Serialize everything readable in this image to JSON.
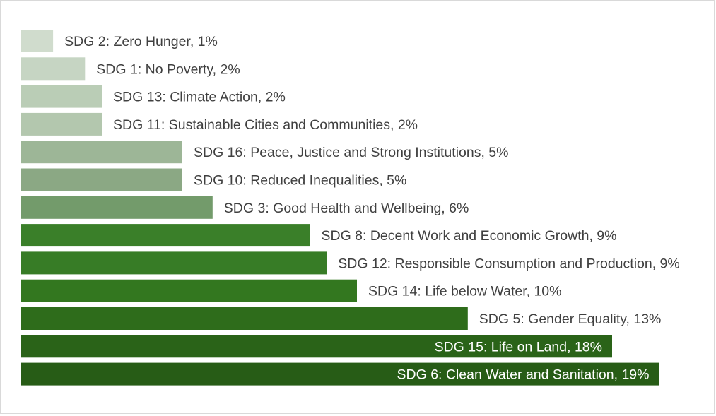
{
  "chart_data": {
    "type": "bar",
    "orientation": "horizontal",
    "title": "",
    "xlabel": "",
    "ylabel": "",
    "grid": false,
    "legend": "none",
    "xlim": [
      0,
      19
    ],
    "categories": [
      "SDG 2: Zero Hunger",
      "SDG 1: No Poverty",
      "SDG 13: Climate Action",
      "SDG 11: Sustainable Cities and Communities",
      "SDG 16: Peace, Justice and Strong Institutions",
      "SDG 10: Reduced Inequalities",
      "SDG 3: Good Health and Wellbeing",
      "SDG 8: Decent Work and Economic Growth",
      "SDG 12: Responsible Consumption and Production",
      "SDG 14: Life below Water",
      "SDG 5: Gender Equality",
      "SDG 15: Life on Land",
      "SDG 6: Clean Water and Sanitation"
    ],
    "values": [
      0.95,
      1.9,
      2.4,
      2.4,
      4.8,
      4.8,
      5.7,
      8.6,
      9.1,
      10.0,
      13.3,
      17.6,
      19.0
    ],
    "labels": [
      "SDG 2: Zero Hunger, 1%",
      "SDG 1: No Poverty, 2%",
      "SDG 13: Climate Action, 2%",
      "SDG 11: Sustainable Cities and Communities, 2%",
      "SDG 16: Peace, Justice and Strong Institutions, 5%",
      "SDG 10: Reduced Inequalities, 5%",
      "SDG 3: Good Health and Wellbeing, 6%",
      "SDG 8: Decent Work and Economic Growth, 9%",
      "SDG 12: Responsible Consumption and Production, 9%",
      "SDG 14: Life below Water, 10%",
      "SDG 5: Gender Equality, 13%",
      "SDG 15: Life on Land, 18%",
      "SDG 6: Clean Water and Sanitation, 19%"
    ],
    "colors": [
      "#d0dccd",
      "#c6d5c3",
      "#bacdb6",
      "#b3c7ae",
      "#9db697",
      "#8ba884",
      "#739b6b",
      "#3a7f29",
      "#377c26",
      "#33771f",
      "#2e6c1b",
      "#2a6318",
      "#275c16"
    ],
    "label_inside": [
      false,
      false,
      false,
      false,
      false,
      false,
      false,
      false,
      false,
      false,
      false,
      true,
      true
    ],
    "label_colors": {
      "outside": "#404040",
      "inside": "#ffffff"
    }
  }
}
